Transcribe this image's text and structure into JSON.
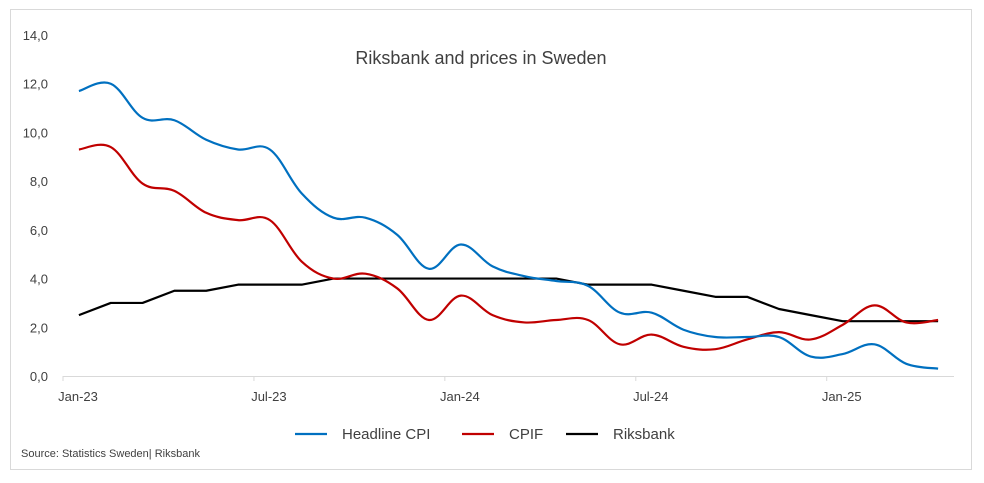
{
  "chart_data": {
    "type": "line",
    "title": "Riksbank and prices in Sweden",
    "xlabel": "",
    "ylabel": "",
    "ylim": [
      0,
      14
    ],
    "yticks": [
      "0,0",
      "2,0",
      "4,0",
      "6,0",
      "8,0",
      "10,0",
      "12,0",
      "14,0"
    ],
    "ytick_values": [
      0,
      2,
      4,
      6,
      8,
      10,
      12,
      14
    ],
    "x": [
      "Jan-23",
      "Feb-23",
      "Mar-23",
      "Apr-23",
      "May-23",
      "Jun-23",
      "Jul-23",
      "Aug-23",
      "Sep-23",
      "Oct-23",
      "Nov-23",
      "Dec-23",
      "Jan-24",
      "Feb-24",
      "Mar-24",
      "Apr-24",
      "May-24",
      "Jun-24",
      "Jul-24",
      "Aug-24",
      "Sep-24",
      "Oct-24",
      "Nov-24",
      "Dec-24",
      "Jan-25",
      "Feb-25",
      "Mar-25",
      "Apr-25"
    ],
    "xtick_labels": [
      {
        "label": "Jan-23",
        "index": 0
      },
      {
        "label": "Jul-23",
        "index": 6
      },
      {
        "label": "Jan-24",
        "index": 12
      },
      {
        "label": "Jul-24",
        "index": 18
      },
      {
        "label": "Jan-25",
        "index": 24
      }
    ],
    "grid": false,
    "legend_position": "bottom",
    "series": [
      {
        "name": "Headline CPI",
        "color": "#0070C0",
        "smooth": true,
        "values": [
          11.7,
          12.0,
          10.6,
          10.5,
          9.7,
          9.3,
          9.3,
          7.5,
          6.5,
          6.5,
          5.8,
          4.4,
          5.4,
          4.5,
          4.1,
          3.9,
          3.7,
          2.6,
          2.6,
          1.9,
          1.6,
          1.6,
          1.6,
          0.8,
          0.9,
          1.3,
          0.5,
          0.3
        ]
      },
      {
        "name": "CPIF",
        "color": "#C00000",
        "smooth": true,
        "values": [
          9.3,
          9.4,
          7.9,
          7.6,
          6.7,
          6.4,
          6.4,
          4.7,
          4.0,
          4.2,
          3.6,
          2.3,
          3.3,
          2.5,
          2.2,
          2.3,
          2.3,
          1.3,
          1.7,
          1.2,
          1.1,
          1.5,
          1.8,
          1.5,
          2.1,
          2.9,
          2.2,
          2.3
        ]
      },
      {
        "name": "Riksbank",
        "color": "#000000",
        "smooth": false,
        "values": [
          2.5,
          3.0,
          3.0,
          3.5,
          3.5,
          3.75,
          3.75,
          3.75,
          4.0,
          4.0,
          4.0,
          4.0,
          4.0,
          4.0,
          4.0,
          4.0,
          3.75,
          3.75,
          3.75,
          3.5,
          3.25,
          3.25,
          2.75,
          2.5,
          2.25,
          2.25,
          2.25,
          2.25
        ]
      }
    ],
    "source": "Source: Statistics Sweden| Riksbank"
  }
}
